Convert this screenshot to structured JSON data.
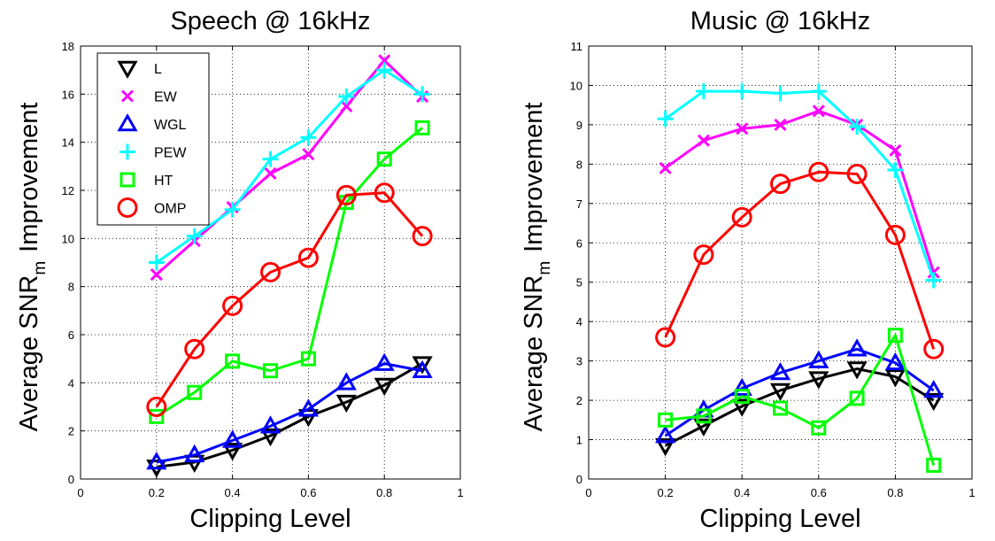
{
  "chart_data": [
    {
      "type": "line",
      "title": "Speech @ 16kHz",
      "xlabel": "Clipping Level",
      "ylabel": {
        "prefix": "Average SNR",
        "subscript": "m",
        "suffix": "Improvement"
      },
      "xlim": [
        0,
        1
      ],
      "ylim": [
        0,
        18
      ],
      "xticks": [
        "0",
        "0.2",
        "0.4",
        "0.6",
        "0.8",
        "1"
      ],
      "yticks": [
        "0",
        "2",
        "4",
        "6",
        "8",
        "10",
        "12",
        "14",
        "16",
        "18"
      ],
      "grid": true,
      "legend_position": "top-left",
      "x": [
        0.2,
        0.3,
        0.4,
        0.5,
        0.6,
        0.7,
        0.8,
        0.9
      ],
      "series": [
        {
          "name": "L",
          "color": "#000000",
          "marker": "triangle-down",
          "values": [
            0.5,
            0.7,
            1.2,
            1.8,
            2.6,
            3.2,
            3.9,
            4.8
          ]
        },
        {
          "name": "EW",
          "color": "#ff00ff",
          "marker": "x",
          "values": [
            8.5,
            9.9,
            11.3,
            12.7,
            13.5,
            15.5,
            17.4,
            15.9
          ]
        },
        {
          "name": "WGL",
          "color": "#0000ff",
          "marker": "triangle-up",
          "values": [
            0.7,
            1.0,
            1.6,
            2.2,
            2.9,
            4.0,
            4.8,
            4.5
          ]
        },
        {
          "name": "PEW",
          "color": "#00ffff",
          "marker": "plus",
          "values": [
            9.0,
            10.1,
            11.2,
            13.3,
            14.2,
            15.9,
            17.0,
            16.0
          ]
        },
        {
          "name": "HT",
          "color": "#00ff00",
          "marker": "square",
          "values": [
            2.6,
            3.6,
            4.9,
            4.5,
            5.0,
            11.5,
            13.3,
            14.6
          ]
        },
        {
          "name": "OMP",
          "color": "#ff0000",
          "marker": "circle",
          "values": [
            3.0,
            5.4,
            7.2,
            8.6,
            9.2,
            11.8,
            11.9,
            10.1
          ]
        }
      ]
    },
    {
      "type": "line",
      "title": "Music @ 16kHz",
      "xlabel": "Clipping Level",
      "ylabel": {
        "prefix": "Average SNR",
        "subscript": "m",
        "suffix": "Improvement"
      },
      "xlim": [
        0,
        1
      ],
      "ylim": [
        0,
        11
      ],
      "xticks": [
        "0",
        "0.2",
        "0.4",
        "0.6",
        "0.8",
        "1"
      ],
      "yticks": [
        "0",
        "1",
        "2",
        "3",
        "4",
        "5",
        "6",
        "7",
        "8",
        "9",
        "10",
        "11"
      ],
      "grid": true,
      "x": [
        0.2,
        0.3,
        0.4,
        0.5,
        0.6,
        0.7,
        0.8,
        0.9
      ],
      "series": [
        {
          "name": "L",
          "color": "#000000",
          "marker": "triangle-down",
          "values": [
            0.85,
            1.35,
            1.85,
            2.25,
            2.55,
            2.8,
            2.6,
            2.0
          ]
        },
        {
          "name": "EW",
          "color": "#ff00ff",
          "marker": "x",
          "values": [
            7.9,
            8.6,
            8.9,
            9.0,
            9.35,
            9.0,
            8.35,
            5.25
          ]
        },
        {
          "name": "WGL",
          "color": "#0000ff",
          "marker": "triangle-up",
          "values": [
            1.1,
            1.75,
            2.3,
            2.7,
            3.0,
            3.3,
            2.95,
            2.25
          ]
        },
        {
          "name": "PEW",
          "color": "#00ffff",
          "marker": "plus",
          "values": [
            9.15,
            9.85,
            9.85,
            9.8,
            9.85,
            8.95,
            7.85,
            5.05
          ]
        },
        {
          "name": "HT",
          "color": "#00ff00",
          "marker": "square",
          "values": [
            1.5,
            1.6,
            2.1,
            1.8,
            1.3,
            2.05,
            3.65,
            0.35
          ]
        },
        {
          "name": "OMP",
          "color": "#ff0000",
          "marker": "circle",
          "values": [
            3.6,
            5.7,
            6.65,
            7.5,
            7.8,
            7.75,
            6.2,
            3.3
          ]
        }
      ]
    }
  ]
}
